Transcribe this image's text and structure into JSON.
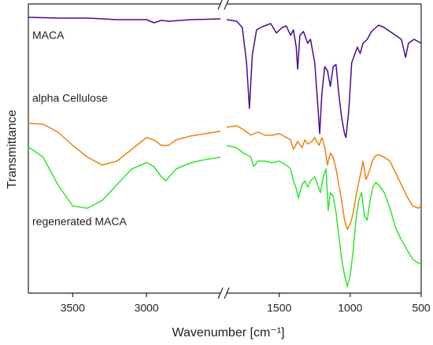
{
  "chart_data": {
    "type": "line",
    "xlabel": "Wavenumber [cm⁻¹]",
    "ylabel": "Transmittance",
    "xlim": [
      3800,
      500
    ],
    "xbreak": [
      2500,
      1870
    ],
    "xticks": [
      3500,
      3000,
      1500,
      1000,
      500
    ],
    "ylim": [
      0,
      368
    ],
    "series": [
      {
        "name": "MACA",
        "color": "#4b0a8c",
        "x": [
          3800,
          3600,
          3400,
          3200,
          3000,
          2950,
          2900,
          2850,
          2700,
          2500,
          1870,
          1800,
          1760,
          1730,
          1710,
          1690,
          1660,
          1620,
          1560,
          1520,
          1480,
          1450,
          1420,
          1400,
          1380,
          1370,
          1355,
          1330,
          1300,
          1280,
          1250,
          1230,
          1215,
          1200,
          1180,
          1160,
          1140,
          1120,
          1100,
          1080,
          1060,
          1040,
          1030,
          1010,
          990,
          970,
          950,
          930,
          910,
          880,
          850,
          800,
          760,
          720,
          680,
          640,
          610,
          590,
          550,
          500
        ],
        "values": [
          351,
          350,
          350,
          348,
          348,
          344,
          347,
          346,
          348,
          349,
          348,
          346,
          338,
          293,
          235,
          303,
          335,
          339,
          343,
          331,
          338,
          340,
          328,
          335,
          313,
          285,
          328,
          333,
          318,
          323,
          293,
          243,
          203,
          253,
          288,
          283,
          263,
          288,
          291,
          253,
          223,
          203,
          198,
          233,
          293,
          303,
          313,
          305,
          318,
          323,
          333,
          341,
          338,
          333,
          328,
          323,
          300,
          318,
          323,
          318
        ]
      },
      {
        "name": "alpha Cellulose",
        "color": "#f07f0e",
        "x": [
          3800,
          3700,
          3600,
          3500,
          3400,
          3300,
          3200,
          3100,
          3000,
          2950,
          2900,
          2850,
          2800,
          2700,
          2600,
          2500,
          1870,
          1800,
          1750,
          1700,
          1650,
          1600,
          1550,
          1500,
          1450,
          1420,
          1400,
          1370,
          1340,
          1320,
          1300,
          1270,
          1250,
          1220,
          1200,
          1180,
          1160,
          1140,
          1120,
          1100,
          1080,
          1060,
          1040,
          1020,
          1000,
          980,
          960,
          940,
          920,
          910,
          890,
          880,
          860,
          840,
          820,
          800,
          760,
          720,
          680,
          640,
          600,
          560,
          520,
          500
        ],
        "values": [
          216,
          215,
          205,
          188,
          173,
          163,
          168,
          183,
          198,
          195,
          188,
          188,
          195,
          200,
          203,
          206,
          211,
          213,
          208,
          201,
          205,
          201,
          201,
          203,
          198,
          195,
          183,
          193,
          185,
          195,
          190,
          193,
          198,
          188,
          198,
          186,
          163,
          178,
          173,
          158,
          138,
          118,
          93,
          81,
          88,
          101,
          123,
          141,
          158,
          168,
          145,
          148,
          158,
          170,
          175,
          176,
          173,
          168,
          153,
          138,
          123,
          111,
          108,
          111
        ]
      },
      {
        "name": "regenerated MACA",
        "color": "#2ee62e",
        "x": [
          3800,
          3700,
          3600,
          3500,
          3400,
          3300,
          3200,
          3100,
          3000,
          2950,
          2900,
          2870,
          2800,
          2700,
          2600,
          2500,
          1870,
          1800,
          1750,
          1700,
          1680,
          1650,
          1600,
          1550,
          1500,
          1450,
          1420,
          1400,
          1380,
          1365,
          1340,
          1320,
          1300,
          1280,
          1250,
          1230,
          1210,
          1190,
          1170,
          1155,
          1140,
          1120,
          1100,
          1080,
          1060,
          1040,
          1020,
          1000,
          980,
          960,
          940,
          920,
          900,
          880,
          860,
          840,
          820,
          800,
          760,
          720,
          680,
          640,
          600,
          560,
          520,
          500
        ],
        "values": [
          186,
          173,
          138,
          111,
          108,
          118,
          138,
          158,
          166,
          161,
          148,
          143,
          158,
          166,
          170,
          173,
          188,
          185,
          178,
          173,
          161,
          168,
          168,
          166,
          168,
          163,
          158,
          143,
          133,
          121,
          138,
          143,
          135,
          143,
          148,
          138,
          128,
          148,
          158,
          105,
          128,
          123,
          103,
          73,
          43,
          23,
          8,
          23,
          53,
          93,
          118,
          128,
          98,
          93,
          118,
          135,
          141,
          138,
          128,
          108,
          83,
          68,
          55,
          43,
          38,
          38
        ]
      }
    ]
  }
}
